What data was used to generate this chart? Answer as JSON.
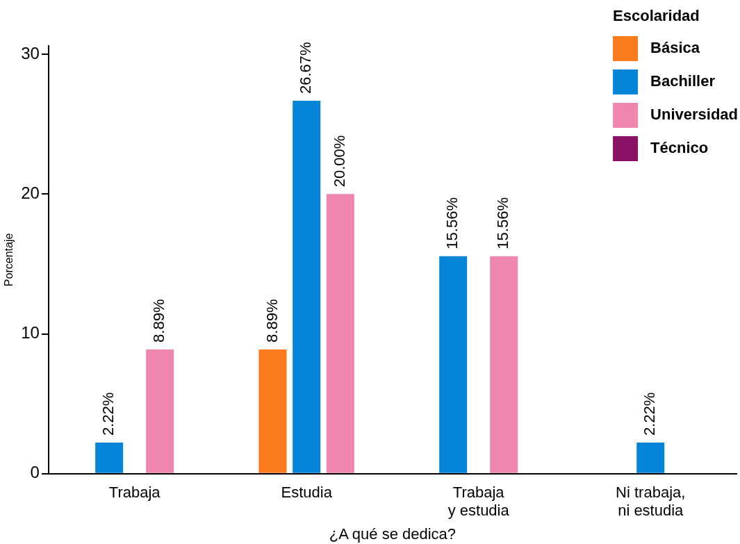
{
  "chart_data": {
    "type": "bar",
    "xlabel": "¿A qué se dedica?",
    "ylabel": "Porcentaje",
    "legend_title": "Escolaridad",
    "legend": "top right",
    "grid": false,
    "categories": [
      "Trabaja",
      "Estudia",
      "Trabaja\ny estudia",
      "Ni trabaja,\nni estudia"
    ],
    "ylim": [
      0,
      30.6
    ],
    "yticks": [
      0,
      10,
      20,
      30
    ],
    "series": [
      {
        "name": "Básica",
        "color": "#fb7a1c",
        "values": [
          null,
          8.89,
          null,
          null
        ],
        "value_labels": [
          null,
          "8.89%",
          null,
          null
        ]
      },
      {
        "name": "Bachiller",
        "color": "#0585d8",
        "values": [
          2.22,
          26.67,
          15.56,
          2.22
        ],
        "value_labels": [
          "2.22%",
          "26.67%",
          "15.56%",
          "2.22%"
        ]
      },
      {
        "name": "Universidad",
        "color": "#ef86ae",
        "values": [
          8.89,
          20.0,
          15.56,
          null
        ],
        "value_labels": [
          "8.89%",
          "20.00%",
          "15.56%",
          null
        ]
      },
      {
        "name": "Técnico",
        "color": "#8a1166",
        "values": [
          null,
          null,
          null,
          null
        ],
        "value_labels": [
          null,
          null,
          null,
          null
        ]
      }
    ]
  }
}
